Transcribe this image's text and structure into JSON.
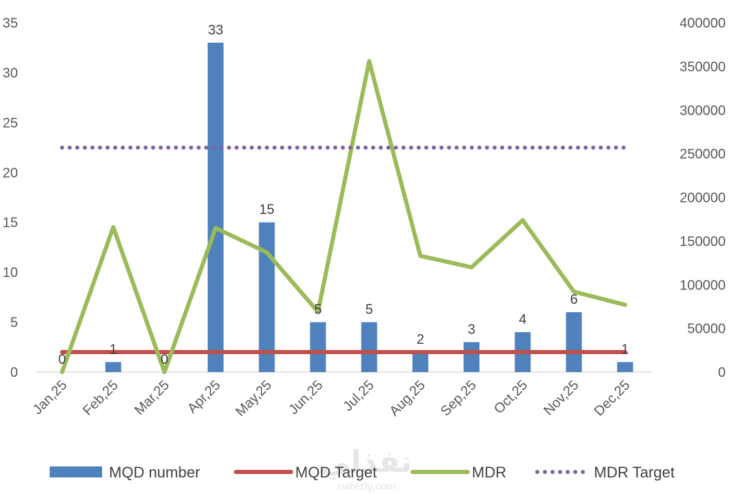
{
  "chart_data": {
    "type": "bar+line",
    "categories": [
      "Jan,25",
      "Feb,25",
      "Mar,25",
      "Apr,25",
      "May,25",
      "Jun,25",
      "Jul,25",
      "Aug,25",
      "Sep,25",
      "Oct,25",
      "Nov,25",
      "Dec,25"
    ],
    "series": [
      {
        "name": "MQD number",
        "type": "bar",
        "axis": "left",
        "color": "#4f81bd",
        "values": [
          0,
          1,
          0,
          33,
          15,
          5,
          5,
          2,
          3,
          4,
          6,
          1
        ]
      },
      {
        "name": "MQD Target",
        "type": "line",
        "axis": "left",
        "color": "#c0504d",
        "values": [
          2,
          2,
          2,
          2,
          2,
          2,
          2,
          2,
          2,
          2,
          2,
          2
        ]
      },
      {
        "name": "MDR",
        "type": "line",
        "axis": "right",
        "color": "#9bbb59",
        "values": [
          0,
          166000,
          0,
          165000,
          137000,
          69000,
          356000,
          133000,
          120000,
          174000,
          92000,
          77000
        ]
      },
      {
        "name": "MDR Target",
        "type": "line",
        "style": "dotted",
        "axis": "right",
        "color": "#8064a2",
        "values": [
          257000,
          257000,
          257000,
          257000,
          257000,
          257000,
          257000,
          257000,
          257000,
          257000,
          257000,
          257000
        ]
      }
    ],
    "data_labels": [
      "0",
      "1",
      "0",
      "33",
      "15",
      "5",
      "5",
      "2",
      "3",
      "4",
      "6",
      "1"
    ],
    "y_left": {
      "min": 0,
      "max": 35,
      "ticks": [
        "0",
        "5",
        "10",
        "15",
        "20",
        "25",
        "30",
        "35"
      ]
    },
    "y_right": {
      "min": 0,
      "max": 400000,
      "ticks": [
        "0",
        "50000",
        "100000",
        "150000",
        "200000",
        "250000",
        "300000",
        "350000",
        "400000"
      ]
    },
    "legend": {
      "position": "bottom",
      "items": [
        "MQD number",
        "MQD Target",
        "MDR",
        "MDR Target"
      ]
    },
    "grid": false
  },
  "watermark": {
    "arabic": "نفذلي",
    "latin": "nafezly.com"
  }
}
